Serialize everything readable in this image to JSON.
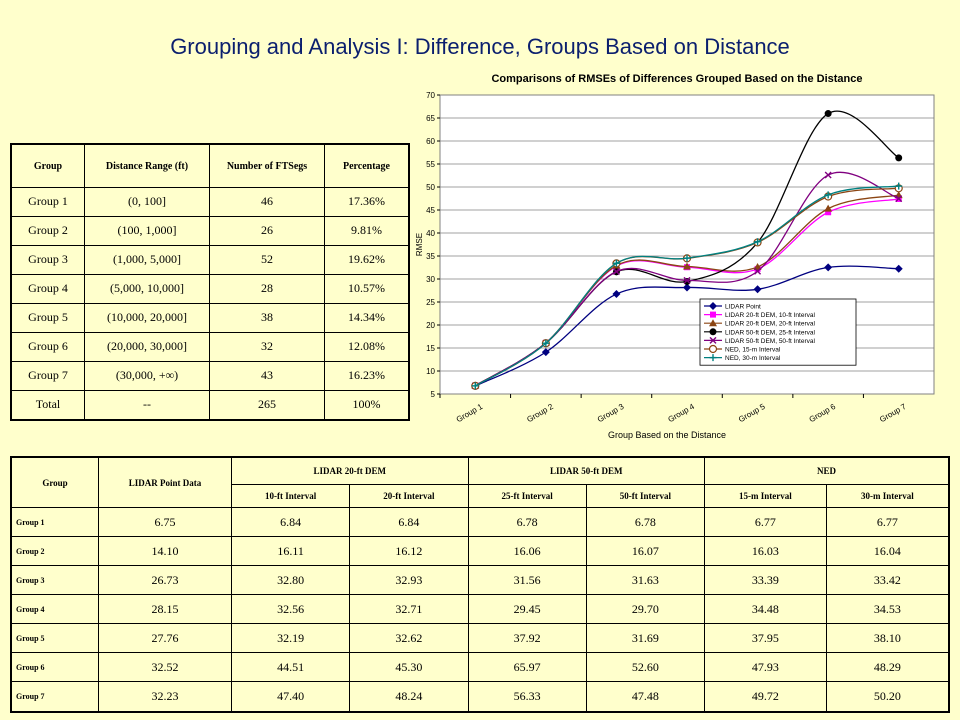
{
  "slide": {
    "title": "Grouping and Analysis I: Difference, Groups Based on Distance"
  },
  "distance_table": {
    "headers": [
      "Group",
      "Distance Range (ft)",
      "Number of FTSegs",
      "Percentage"
    ],
    "rows": [
      [
        "Group 1",
        "(0, 100]",
        "46",
        "17.36%"
      ],
      [
        "Group 2",
        "(100, 1,000]",
        "26",
        "9.81%"
      ],
      [
        "Group 3",
        "(1,000, 5,000]",
        "52",
        "19.62%"
      ],
      [
        "Group 4",
        "(5,000, 10,000]",
        "28",
        "10.57%"
      ],
      [
        "Group 5",
        "(10,000, 20,000]",
        "38",
        "14.34%"
      ],
      [
        "Group 6",
        "(20,000, 30,000]",
        "32",
        "12.08%"
      ],
      [
        "Group 7",
        "(30,000, +∞)",
        "43",
        "16.23%"
      ],
      [
        "Total",
        "--",
        "265",
        "100%"
      ]
    ]
  },
  "rmse_table": {
    "h_group": "Group",
    "h_point": "LIDAR Point Data",
    "h_20ft": "LIDAR 20-ft DEM",
    "h_50ft": "LIDAR 50-ft DEM",
    "h_ned": "NED",
    "sub": [
      "10-ft Interval",
      "20-ft Interval",
      "25-ft Interval",
      "50-ft Interval",
      "15-m Interval",
      "30-m Interval"
    ],
    "rows": [
      [
        "Group 1",
        "6.75",
        "6.84",
        "6.84",
        "6.78",
        "6.78",
        "6.77",
        "6.77"
      ],
      [
        "Group 2",
        "14.10",
        "16.11",
        "16.12",
        "16.06",
        "16.07",
        "16.03",
        "16.04"
      ],
      [
        "Group 3",
        "26.73",
        "32.80",
        "32.93",
        "31.56",
        "31.63",
        "33.39",
        "33.42"
      ],
      [
        "Group 4",
        "28.15",
        "32.56",
        "32.71",
        "29.45",
        "29.70",
        "34.48",
        "34.53"
      ],
      [
        "Group 5",
        "27.76",
        "32.19",
        "32.62",
        "37.92",
        "31.69",
        "37.95",
        "38.10"
      ],
      [
        "Group 6",
        "32.52",
        "44.51",
        "45.30",
        "65.97",
        "52.60",
        "47.93",
        "48.29"
      ],
      [
        "Group 7",
        "32.23",
        "47.40",
        "48.24",
        "56.33",
        "47.48",
        "49.72",
        "50.20"
      ]
    ]
  },
  "chart_data": {
    "type": "line",
    "title": "Comparisons of RMSEs of Differences Grouped Based on the Distance",
    "xlabel": "Group Based on the Distance",
    "ylabel": "RMSE",
    "ylim": [
      5,
      70
    ],
    "yticks": [
      "5",
      "10",
      "15",
      "20",
      "25",
      "30",
      "35",
      "40",
      "45",
      "50",
      "55",
      "60",
      "65",
      "70"
    ],
    "categories": [
      "Group 1",
      "Group 2",
      "Group 3",
      "Group 4",
      "Group 5",
      "Group 6",
      "Group 7"
    ],
    "grid": true,
    "legend_position": "bottom-right",
    "series": [
      {
        "name": "LIDAR Point",
        "color": "#000080",
        "marker": "diamond",
        "values": [
          6.75,
          14.1,
          26.73,
          28.15,
          27.76,
          32.52,
          32.23
        ]
      },
      {
        "name": "LIDAR 20-ft DEM, 10-ft Interval",
        "color": "#FF00FF",
        "marker": "square",
        "values": [
          6.84,
          16.11,
          32.8,
          32.56,
          32.19,
          44.51,
          47.4
        ]
      },
      {
        "name": "LIDAR 20-ft DEM, 20-ft Interval",
        "color": "#8B4513",
        "marker": "triangle",
        "values": [
          6.84,
          16.12,
          32.93,
          32.71,
          32.62,
          45.3,
          48.24
        ]
      },
      {
        "name": "LIDAR 50-ft DEM, 25-ft Interval",
        "color": "#000000",
        "marker": "circle",
        "values": [
          6.78,
          16.06,
          31.56,
          29.45,
          37.92,
          65.97,
          56.33
        ]
      },
      {
        "name": "LIDAR 50-ft DEM, 50-ft Interval",
        "color": "#800080",
        "marker": "x",
        "values": [
          6.78,
          16.07,
          31.63,
          29.7,
          31.69,
          52.6,
          47.48
        ]
      },
      {
        "name": "NED, 15-m Interval",
        "color": "#8B4513",
        "marker": "open-circle",
        "values": [
          6.77,
          16.03,
          33.39,
          34.48,
          37.95,
          47.93,
          49.72
        ]
      },
      {
        "name": "NED, 30-m Interval",
        "color": "#008080",
        "marker": "plus",
        "values": [
          6.77,
          16.04,
          33.42,
          34.53,
          38.1,
          48.29,
          50.2
        ]
      }
    ]
  }
}
